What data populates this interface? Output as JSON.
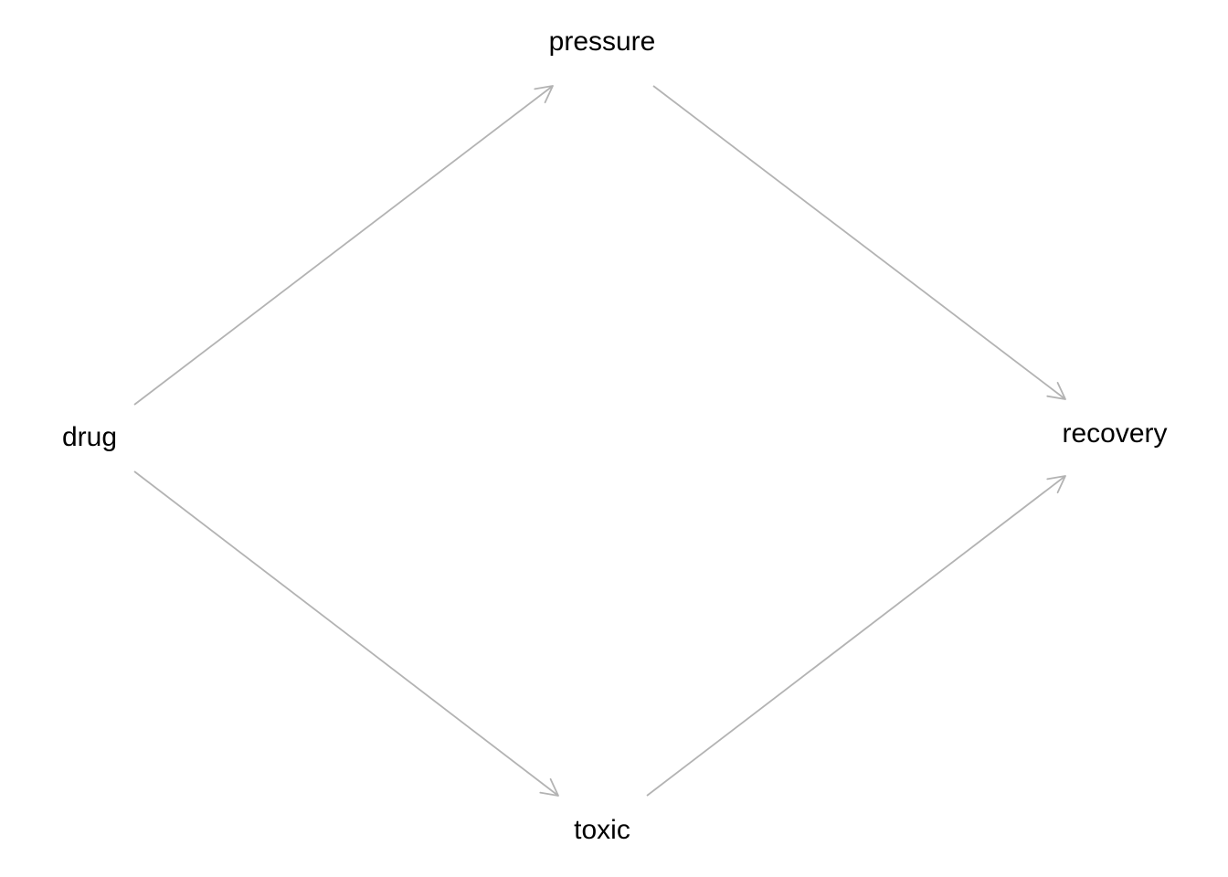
{
  "nodes": [
    {
      "id": "pressure",
      "label": "pressure"
    },
    {
      "id": "drug",
      "label": "drug"
    },
    {
      "id": "recovery",
      "label": "recovery"
    },
    {
      "id": "toxic",
      "label": "toxic"
    }
  ],
  "edges": [
    {
      "from": "drug",
      "to": "pressure"
    },
    {
      "from": "pressure",
      "to": "recovery"
    },
    {
      "from": "drug",
      "to": "toxic"
    },
    {
      "from": "toxic",
      "to": "recovery"
    }
  ],
  "colors": {
    "edge": "#b3b3b3",
    "label": "#000000",
    "background": "#ffffff"
  }
}
